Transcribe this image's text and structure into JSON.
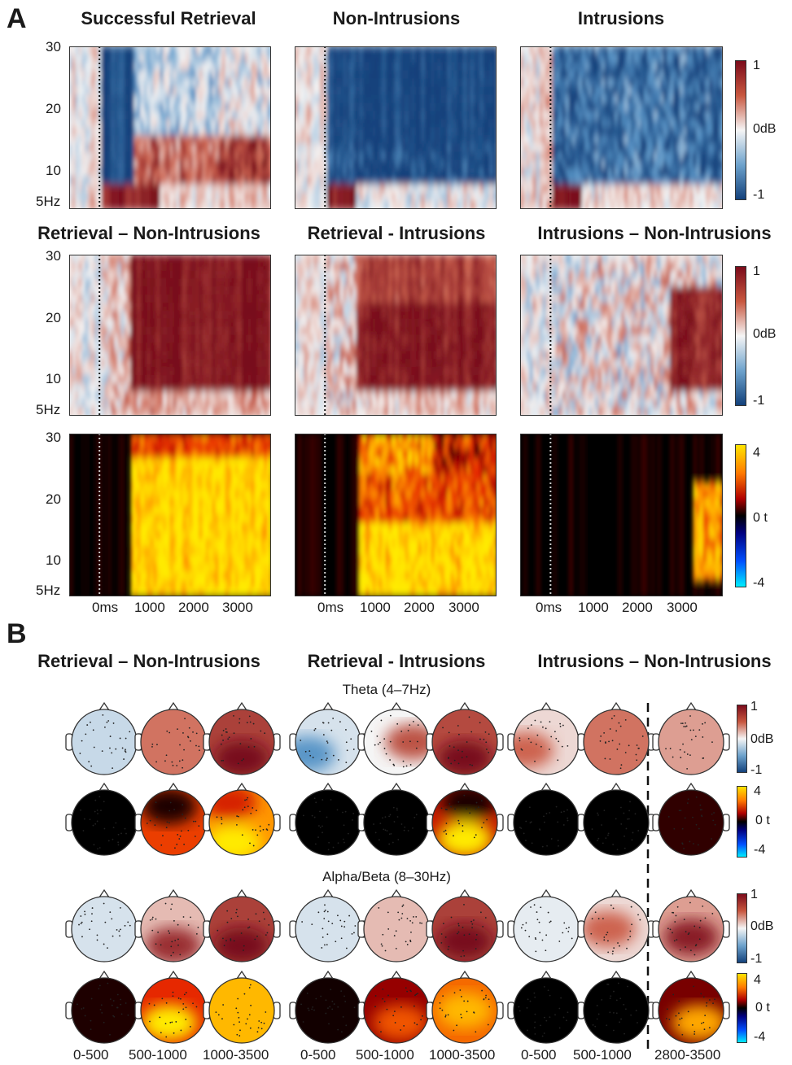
{
  "panel_a": {
    "letter": "A",
    "row1_titles": [
      "Successful Retrieval",
      "Non-Intrusions",
      "Intrusions"
    ],
    "row2_titles": [
      "Retrieval – Non-Intrusions",
      "Retrieval - Intrusions",
      "Intrusions – Non-Intrusions"
    ],
    "y_ticks": [
      "30",
      "20",
      "10",
      "5Hz"
    ],
    "x_ticks": [
      "0ms",
      "1000",
      "2000",
      "3000"
    ],
    "colorbar_db": {
      "max": "1",
      "mid": "0dB",
      "min": "-1"
    },
    "colorbar_t": {
      "max": "4",
      "mid": "0 t",
      "min": "-4"
    }
  },
  "panel_b": {
    "letter": "B",
    "titles": [
      "Retrieval – Non-Intrusions",
      "Retrieval - Intrusions",
      "Intrusions – Non-Intrusions"
    ],
    "band_theta": "Theta (4–7Hz)",
    "band_alpha": "Alpha/Beta (8–30Hz)",
    "windows": [
      "0-500",
      "500-1000",
      "1000-3500",
      "0-500",
      "500-1000",
      "1000-3500",
      "0-500",
      "500-1000",
      "2800-3500"
    ],
    "colorbar_db": {
      "max": "1",
      "mid": "0dB",
      "min": "-1"
    },
    "colorbar_t": {
      "max": "4",
      "mid": "0 t",
      "min": "-4"
    }
  },
  "colors": {
    "db_neg": "#1a4f8f",
    "db_zero": "#f4f4f4",
    "db_pos": "#8b0d1a",
    "t_neg": "#00e5ff",
    "t_zero": "#000000",
    "t_pos": "#ffe600"
  }
}
